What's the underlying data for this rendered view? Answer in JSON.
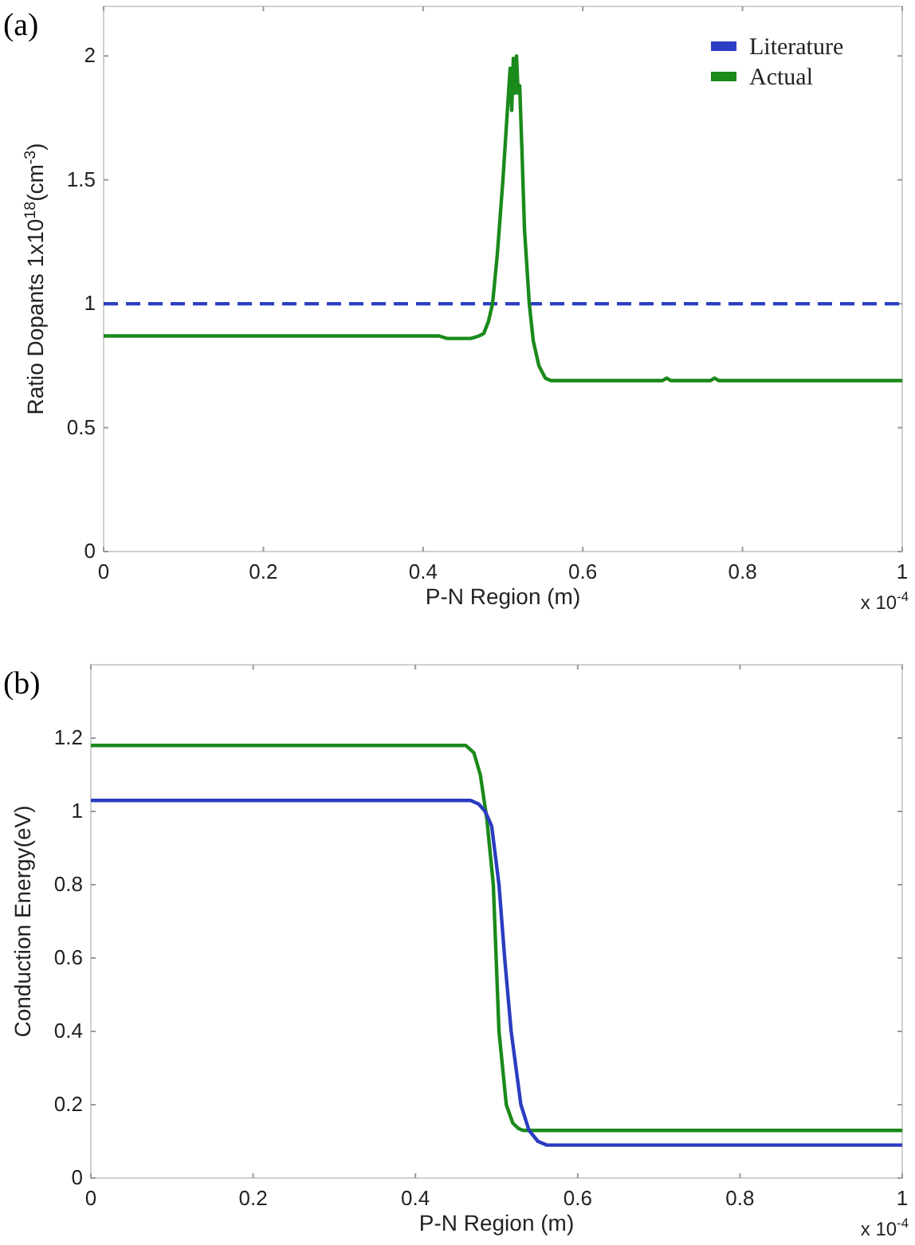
{
  "chart_data": [
    {
      "type": "line",
      "title": "(a)",
      "xlabel": "P-N Region (m)",
      "ylabel": "Ratio Dopants 1x10$^{18}$(cm$^{-3}$)",
      "xlim": [
        0,
        1
      ],
      "ylim": [
        0,
        2.2
      ],
      "xticks": [
        0,
        0.2,
        0.4,
        0.6,
        0.8,
        1
      ],
      "yticks": [
        0,
        0.5,
        1,
        1.5,
        2
      ],
      "grid": false,
      "legend": "top right",
      "annotations": [
        "x 10$^{-4}$"
      ],
      "series": [
        {
          "name": "Literature",
          "color": "#2b3fc4",
          "line_style": "dashed",
          "x": [
            0,
            1
          ],
          "values": [
            1,
            1
          ]
        },
        {
          "name": "Actual",
          "color": "#1a8a1a",
          "line_style": "solid",
          "x": [
            0,
            0.2,
            0.42,
            0.43,
            0.46,
            0.47,
            0.476,
            0.482,
            0.487,
            0.493,
            0.5,
            0.505,
            0.509,
            0.511,
            0.513,
            0.515,
            0.517,
            0.519,
            0.521,
            0.524,
            0.527,
            0.53,
            0.533,
            0.538,
            0.545,
            0.553,
            0.56,
            0.7,
            0.705,
            0.71,
            0.76,
            0.765,
            0.77,
            1
          ],
          "values": [
            0.87,
            0.87,
            0.87,
            0.86,
            0.86,
            0.87,
            0.88,
            0.93,
            1.0,
            1.2,
            1.5,
            1.75,
            1.95,
            1.78,
            1.99,
            1.85,
            2.0,
            1.85,
            1.88,
            1.6,
            1.3,
            1.15,
            1.0,
            0.85,
            0.75,
            0.7,
            0.69,
            0.69,
            0.7,
            0.69,
            0.69,
            0.7,
            0.69,
            0.69
          ]
        }
      ]
    },
    {
      "type": "line",
      "title": "(b)",
      "xlabel": "P-N Region (m)",
      "ylabel": "Conduction Energy(eV)",
      "xlim": [
        0,
        1
      ],
      "ylim": [
        0,
        1.4
      ],
      "xticks": [
        0,
        0.2,
        0.4,
        0.6,
        0.8,
        1
      ],
      "yticks": [
        0,
        0.2,
        0.4,
        0.6,
        0.8,
        1,
        1.2
      ],
      "grid": false,
      "annotations": [
        "x 10$^{-4}$"
      ],
      "series": [
        {
          "color": "#1a8a1a",
          "line_style": "solid",
          "x": [
            0,
            0.3,
            0.462,
            0.472,
            0.48,
            0.488,
            0.496,
            0.503,
            0.512,
            0.52,
            0.527,
            0.533,
            0.6,
            1
          ],
          "values": [
            1.18,
            1.18,
            1.18,
            1.16,
            1.1,
            0.98,
            0.8,
            0.4,
            0.2,
            0.15,
            0.135,
            0.13,
            0.13,
            0.13
          ]
        },
        {
          "color": "#2a3cc0",
          "line_style": "solid",
          "x": [
            0,
            0.3,
            0.468,
            0.478,
            0.486,
            0.494,
            0.503,
            0.51,
            0.518,
            0.53,
            0.54,
            0.551,
            0.562,
            0.7,
            1
          ],
          "values": [
            1.03,
            1.03,
            1.03,
            1.02,
            1.0,
            0.96,
            0.8,
            0.6,
            0.4,
            0.2,
            0.13,
            0.1,
            0.09,
            0.09,
            0.09
          ]
        }
      ]
    }
  ]
}
